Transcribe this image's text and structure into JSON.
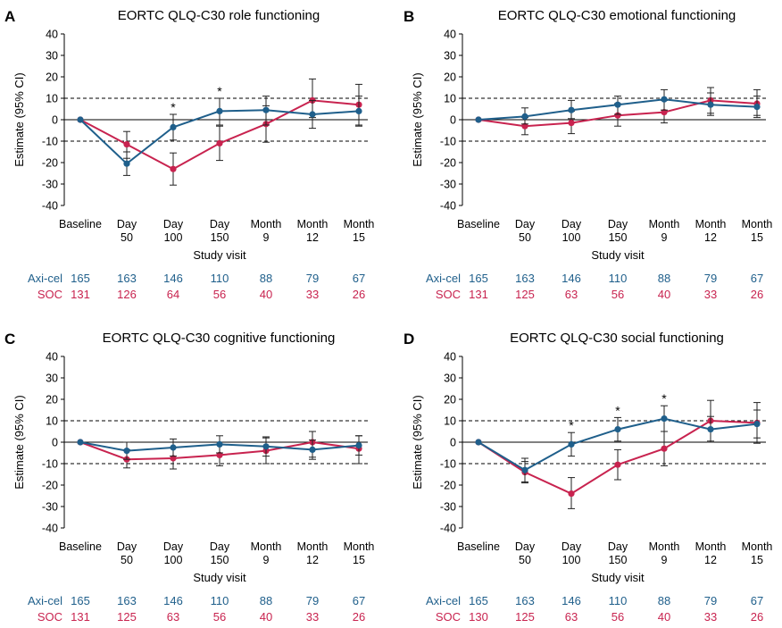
{
  "colors": {
    "axicel": "#1f5f8b",
    "soc": "#c8234f",
    "axis": "#000000"
  },
  "shared": {
    "ylabel": "Estimate (95% CI)",
    "xlabel": "Study visit",
    "yticks": [
      "40",
      "30",
      "20",
      "10",
      "0",
      "-10",
      "-20",
      "-30",
      "-40"
    ],
    "categories": [
      [
        "Baseline"
      ],
      [
        "Day",
        "50"
      ],
      [
        "Day",
        "100"
      ],
      [
        "Day",
        "150"
      ],
      [
        "Month",
        "9"
      ],
      [
        "Month",
        "12"
      ],
      [
        "Month",
        "15"
      ]
    ],
    "axicel_label": "Axi-cel",
    "soc_label": "SOC",
    "asterisk": "*"
  },
  "chart_data": [
    {
      "panel": "A",
      "title": "EORTC QLQ-C30 role functioning",
      "type": "line",
      "ylim": [
        -40,
        40
      ],
      "reference_lines": [
        10,
        0,
        -10
      ],
      "series": [
        {
          "name": "Axi-cel",
          "values": [
            0,
            -20.5,
            -3.5,
            4,
            4.5,
            2.5,
            4
          ],
          "lower": [
            null,
            -26,
            -9.5,
            -2.5,
            -2.5,
            -4,
            -3
          ],
          "upper": [
            null,
            -15,
            2.5,
            10,
            11,
            9,
            11
          ]
        },
        {
          "name": "SOC",
          "values": [
            0,
            -11.5,
            -23,
            -11,
            -2,
            9,
            7
          ],
          "lower": [
            null,
            -18,
            -30.5,
            -19,
            -10.5,
            1,
            -2.5
          ],
          "upper": [
            null,
            -5.5,
            -15.5,
            -3,
            6.5,
            19,
            16.5
          ]
        }
      ],
      "significant": [
        false,
        false,
        true,
        true,
        false,
        false,
        false
      ],
      "n_axicel": [
        "165",
        "163",
        "146",
        "110",
        "88",
        "79",
        "67"
      ],
      "n_soc": [
        "131",
        "126",
        "64",
        "56",
        "40",
        "33",
        "26"
      ]
    },
    {
      "panel": "B",
      "title": "EORTC QLQ-C30 emotional functioning",
      "type": "line",
      "ylim": [
        -40,
        40
      ],
      "reference_lines": [
        10,
        0,
        -10
      ],
      "series": [
        {
          "name": "Axi-cel",
          "values": [
            0,
            1.5,
            4.5,
            7,
            9.5,
            7,
            6
          ],
          "lower": [
            null,
            -2,
            0.5,
            2.5,
            4.5,
            2,
            1
          ],
          "upper": [
            null,
            5.5,
            9,
            11,
            14,
            12.5,
            11
          ]
        },
        {
          "name": "SOC",
          "values": [
            0,
            -3,
            -1.5,
            2,
            3.5,
            9,
            7.5
          ],
          "lower": [
            null,
            -7,
            -6.5,
            -3,
            -1.5,
            3,
            2
          ],
          "upper": [
            null,
            1,
            4,
            7.5,
            9,
            15,
            14
          ]
        }
      ],
      "significant": [
        false,
        false,
        false,
        false,
        false,
        false,
        false
      ],
      "n_axicel": [
        "165",
        "163",
        "146",
        "110",
        "88",
        "79",
        "67"
      ],
      "n_soc": [
        "131",
        "125",
        "63",
        "56",
        "40",
        "33",
        "26"
      ]
    },
    {
      "panel": "C",
      "title": "EORTC QLQ-C30 cognitive functioning",
      "type": "line",
      "ylim": [
        -40,
        40
      ],
      "reference_lines": [
        10,
        0,
        -10
      ],
      "series": [
        {
          "name": "Axi-cel",
          "values": [
            0,
            -4,
            -2.5,
            -1,
            -2,
            -3.5,
            -1.5
          ],
          "lower": [
            null,
            -8,
            -6.5,
            -5,
            -6.5,
            -8,
            -6
          ],
          "upper": [
            null,
            0,
            1.5,
            3,
            2.5,
            1,
            3
          ]
        },
        {
          "name": "SOC",
          "values": [
            0,
            -8,
            -7.5,
            -6,
            -4,
            0,
            -3
          ],
          "lower": [
            null,
            -12,
            -12.5,
            -11,
            -10,
            -7,
            -10
          ],
          "upper": [
            null,
            -3.5,
            -2.5,
            -1,
            2,
            5,
            3
          ]
        }
      ],
      "significant": [
        false,
        false,
        false,
        false,
        false,
        false,
        false
      ],
      "n_axicel": [
        "165",
        "163",
        "146",
        "110",
        "88",
        "79",
        "67"
      ],
      "n_soc": [
        "131",
        "125",
        "63",
        "56",
        "40",
        "33",
        "26"
      ]
    },
    {
      "panel": "D",
      "title": "EORTC QLQ-C30 social functioning",
      "type": "line",
      "ylim": [
        -40,
        40
      ],
      "reference_lines": [
        10,
        0,
        -10
      ],
      "series": [
        {
          "name": "Axi-cel",
          "values": [
            0,
            -13,
            -1,
            6,
            11,
            6,
            8.5
          ],
          "lower": [
            null,
            -18.5,
            -6.5,
            0.5,
            5,
            0,
            2
          ],
          "upper": [
            null,
            -7.5,
            4.5,
            11.5,
            17,
            12,
            15
          ]
        },
        {
          "name": "SOC",
          "values": [
            0,
            -14,
            -24,
            -10.5,
            -3,
            10,
            9
          ],
          "lower": [
            null,
            -19,
            -31,
            -17.5,
            -11,
            0.5,
            -0.5
          ],
          "upper": [
            null,
            -9,
            -16.5,
            -3.5,
            5,
            19.5,
            18.5
          ]
        }
      ],
      "significant": [
        false,
        false,
        true,
        true,
        true,
        false,
        false
      ],
      "n_axicel": [
        "165",
        "163",
        "146",
        "110",
        "88",
        "79",
        "67"
      ],
      "n_soc": [
        "130",
        "125",
        "63",
        "56",
        "40",
        "33",
        "26"
      ]
    }
  ]
}
